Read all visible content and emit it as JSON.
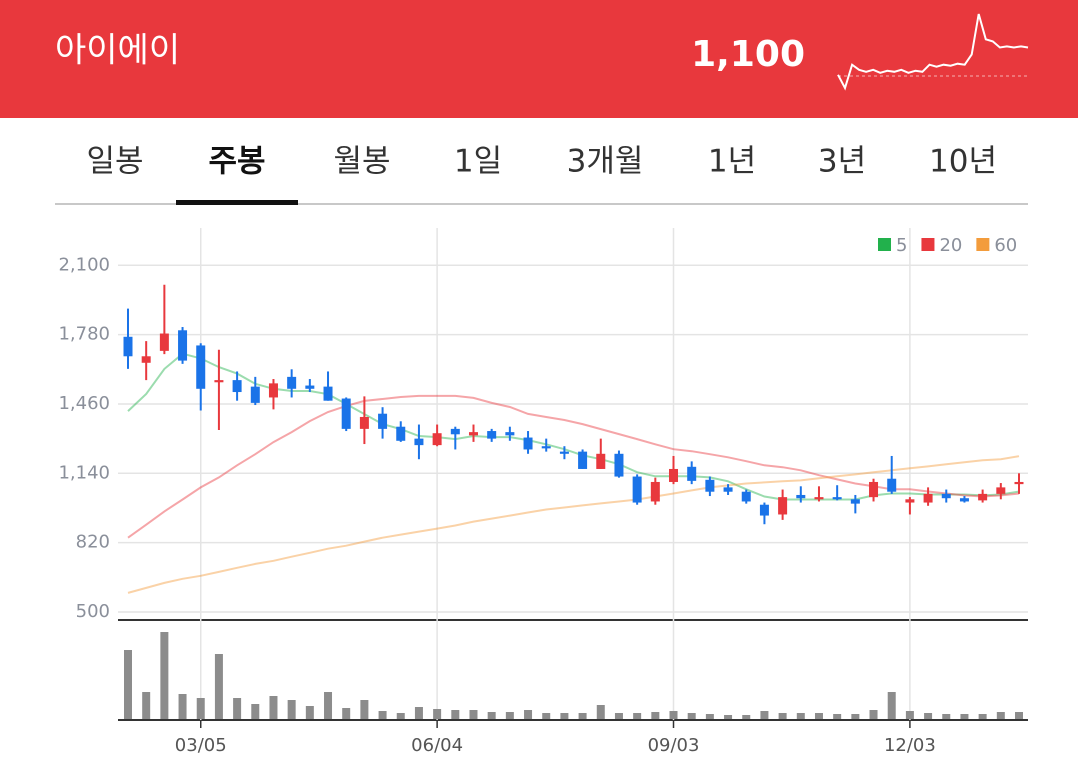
{
  "header": {
    "title": "아이에이",
    "price": "1,100",
    "sparkline": [
      25,
      12,
      35,
      30,
      28,
      30,
      27,
      29,
      28,
      30,
      27,
      29,
      28,
      35,
      33,
      35,
      34,
      36,
      35,
      45,
      85,
      60,
      58,
      52,
      53,
      52,
      53,
      52
    ]
  },
  "tabs": [
    "일봉",
    "주봉",
    "월봉",
    "1일",
    "3개월",
    "1년",
    "3년",
    "10년"
  ],
  "selected_tab": 1,
  "chart_data": {
    "type": "candlestick",
    "categories": [
      null,
      null,
      null,
      null,
      "03/05",
      null,
      null,
      null,
      null,
      null,
      null,
      null,
      null,
      null,
      null,
      null,
      null,
      "06/04",
      null,
      null,
      null,
      null,
      null,
      null,
      null,
      null,
      null,
      null,
      null,
      null,
      "09/03",
      null,
      null,
      null,
      null,
      null,
      null,
      null,
      null,
      null,
      null,
      null,
      null,
      "12/03",
      null,
      null,
      null,
      null,
      null,
      null
    ],
    "open": [
      1770,
      1650,
      1705,
      1800,
      1730,
      1560,
      1570,
      1540,
      1490,
      1585,
      1545,
      1540,
      1485,
      1345,
      1415,
      1355,
      1300,
      1270,
      1345,
      1315,
      1335,
      1330,
      1305,
      1265,
      1240,
      1240,
      1160,
      1230,
      1125,
      1010,
      1100,
      1170,
      1110,
      1075,
      1055,
      995,
      950,
      1040,
      1020,
      1030,
      1020,
      1030,
      1115,
      1005,
      1005,
      1045,
      1025,
      1015,
      1045,
      1090
    ],
    "high": [
      1900,
      1750,
      2010,
      1815,
      1740,
      1710,
      1610,
      1585,
      1575,
      1620,
      1575,
      1610,
      1490,
      1495,
      1445,
      1380,
      1365,
      1365,
      1355,
      1365,
      1345,
      1355,
      1335,
      1300,
      1265,
      1250,
      1300,
      1245,
      1135,
      1120,
      1220,
      1195,
      1125,
      1090,
      1065,
      1005,
      1065,
      1080,
      1080,
      1085,
      1040,
      1115,
      1220,
      1030,
      1075,
      1065,
      1035,
      1065,
      1095,
      1140
    ],
    "low": [
      1622,
      1570,
      1690,
      1645,
      1430,
      1340,
      1475,
      1455,
      1435,
      1490,
      1515,
      1475,
      1335,
      1275,
      1300,
      1285,
      1205,
      1265,
      1250,
      1285,
      1285,
      1290,
      1230,
      1240,
      1205,
      1160,
      1160,
      1120,
      995,
      995,
      1090,
      1090,
      1035,
      1040,
      1000,
      905,
      925,
      1005,
      1010,
      1015,
      955,
      1010,
      1045,
      950,
      990,
      1005,
      1005,
      1005,
      1020,
      1045
    ],
    "close": [
      1680,
      1680,
      1785,
      1660,
      1530,
      1570,
      1515,
      1465,
      1555,
      1530,
      1530,
      1475,
      1345,
      1400,
      1345,
      1290,
      1270,
      1325,
      1320,
      1330,
      1300,
      1315,
      1250,
      1255,
      1230,
      1160,
      1230,
      1125,
      1005,
      1100,
      1160,
      1105,
      1055,
      1055,
      1010,
      945,
      1030,
      1025,
      1030,
      1020,
      1000,
      1100,
      1055,
      1020,
      1045,
      1025,
      1010,
      1045,
      1075,
      1100
    ],
    "volume": [
      69,
      27,
      87,
      25,
      21,
      65,
      21,
      15,
      23,
      19,
      13,
      27,
      11,
      19,
      8,
      6,
      12,
      10,
      9,
      9,
      7,
      7,
      9,
      6,
      6,
      6,
      14,
      6,
      6,
      7,
      8,
      6,
      5,
      4,
      4,
      8,
      6,
      6,
      6,
      5,
      5,
      9,
      27,
      8,
      6,
      5,
      5,
      5,
      7,
      7
    ],
    "up_color": "#e8383d",
    "down_color": "#1a73e8",
    "volume_color": "#8c8c8c",
    "series": [
      {
        "name": "5",
        "color": "#22b14c",
        "values": [
          1427,
          1506,
          1622,
          1692,
          1670,
          1630,
          1600,
          1553,
          1530,
          1520,
          1520,
          1505,
          1460,
          1413,
          1367,
          1344,
          1312,
          1307,
          1298,
          1312,
          1307,
          1307,
          1293,
          1274,
          1251,
          1223,
          1205,
          1182,
          1145,
          1126,
          1126,
          1126,
          1121,
          1103,
          1066,
          1033,
          1019,
          1019,
          1019,
          1019,
          1019,
          1038,
          1047,
          1047,
          1042,
          1042,
          1042,
          1038,
          1042,
          1056
        ]
      },
      {
        "name": "20",
        "color": "#e8383d",
        "values": [
          843,
          903,
          964,
          1019,
          1075,
          1121,
          1177,
          1228,
          1284,
          1330,
          1381,
          1423,
          1451,
          1474,
          1483,
          1492,
          1497,
          1497,
          1497,
          1488,
          1465,
          1446,
          1414,
          1400,
          1386,
          1367,
          1344,
          1321,
          1298,
          1274,
          1251,
          1242,
          1228,
          1214,
          1196,
          1177,
          1168,
          1154,
          1131,
          1112,
          1093,
          1080,
          1066,
          1066,
          1056,
          1047,
          1038,
          1033,
          1038,
          1047
        ]
      },
      {
        "name": "60",
        "color": "#f39c3c",
        "values": [
          588,
          611,
          634,
          653,
          667,
          685,
          704,
          722,
          736,
          755,
          773,
          792,
          806,
          825,
          843,
          857,
          871,
          885,
          899,
          917,
          931,
          945,
          959,
          973,
          982,
          992,
          1001,
          1010,
          1019,
          1033,
          1047,
          1061,
          1075,
          1084,
          1093,
          1098,
          1103,
          1107,
          1117,
          1126,
          1135,
          1145,
          1154,
          1163,
          1172,
          1182,
          1191,
          1200,
          1205,
          1219
        ]
      }
    ],
    "ylim": [
      463,
      2272
    ],
    "yticks": [
      {
        "value": 2100,
        "label": "2,100"
      },
      {
        "value": 1780,
        "label": "1,780"
      },
      {
        "value": 1460,
        "label": "1,460"
      },
      {
        "value": 1140,
        "label": "1,140"
      },
      820,
      500
    ],
    "grid": true,
    "legend": "top-right"
  }
}
